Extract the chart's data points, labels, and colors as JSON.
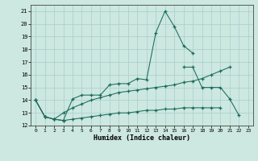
{
  "title": "",
  "xlabel": "Humidex (Indice chaleur)",
  "bg_color": "#cce8e0",
  "grid_color": "#aacccc",
  "line_color": "#1a6b5a",
  "xlim": [
    -0.5,
    23.5
  ],
  "ylim": [
    12,
    21.5
  ],
  "xticks": [
    0,
    1,
    2,
    3,
    4,
    5,
    6,
    7,
    8,
    9,
    10,
    11,
    12,
    13,
    14,
    15,
    16,
    17,
    18,
    19,
    20,
    21,
    22,
    23
  ],
  "yticks": [
    12,
    13,
    14,
    15,
    16,
    17,
    18,
    19,
    20,
    21
  ],
  "line1_x": [
    0,
    1,
    2,
    3,
    4,
    5,
    6,
    7,
    8,
    9,
    10,
    11,
    12,
    13,
    14,
    15,
    16,
    17
  ],
  "line1_y": [
    14.0,
    12.7,
    12.5,
    12.4,
    14.1,
    14.4,
    14.4,
    14.4,
    15.2,
    15.3,
    15.3,
    15.7,
    15.6,
    19.3,
    21.0,
    19.8,
    18.3,
    17.7
  ],
  "line2_x": [
    0,
    1,
    2,
    3,
    4,
    5,
    6,
    7,
    8,
    9,
    10,
    11,
    12,
    13,
    14,
    15,
    16,
    17,
    18,
    19,
    20,
    21
  ],
  "line2_y": [
    14.0,
    12.7,
    12.5,
    13.0,
    13.4,
    13.7,
    14.0,
    14.2,
    14.4,
    14.6,
    14.7,
    14.8,
    14.9,
    15.0,
    15.1,
    15.2,
    15.4,
    15.5,
    15.7,
    16.0,
    16.3,
    16.6
  ],
  "line3_x": [
    0,
    1,
    2,
    3,
    4,
    5,
    6,
    7,
    8,
    9,
    10,
    11,
    12,
    13,
    14,
    15,
    16,
    17,
    18,
    19,
    20
  ],
  "line3_y": [
    14.0,
    12.7,
    12.5,
    12.4,
    12.5,
    12.6,
    12.7,
    12.8,
    12.9,
    13.0,
    13.0,
    13.1,
    13.2,
    13.2,
    13.3,
    13.3,
    13.4,
    13.4,
    13.4,
    13.4,
    13.4
  ],
  "line4_x": [
    16,
    17,
    18,
    19,
    20,
    21,
    22
  ],
  "line4_y": [
    16.6,
    16.6,
    15.0,
    15.0,
    15.0,
    14.1,
    12.8
  ]
}
